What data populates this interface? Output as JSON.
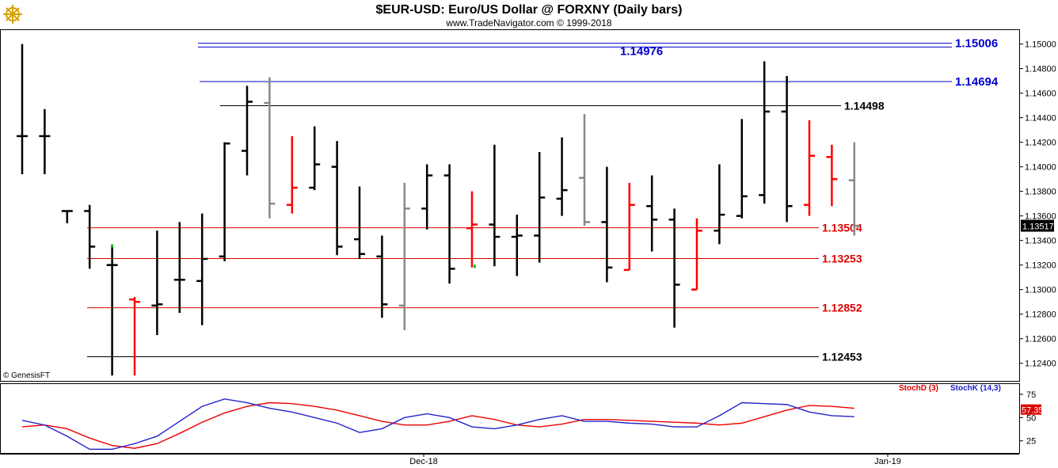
{
  "header": {
    "title": "$EUR-USD:  Euro/US Dollar @ FORXNY  (Daily bars)",
    "subtitle": "www.TradeNavigator.com © 1999-2018"
  },
  "copyright": "© GenesisFT",
  "icons": {
    "logo": "ship-wheel-icon"
  },
  "chart_data": [
    {
      "type": "ohlc",
      "ylim": [
        1.1225,
        1.1512
      ],
      "y_ticks": [
        "1.15000",
        "1.14800",
        "1.14600",
        "1.14400",
        "1.14200",
        "1.14000",
        "1.13800",
        "1.13600",
        "1.13400",
        "1.13200",
        "1.13000",
        "1.12800",
        "1.12600",
        "1.12400"
      ],
      "x_labels": [
        "Dec-18",
        "Jan-19"
      ],
      "last_price": "1.13517",
      "colors": {
        "up": "#000000",
        "down_red": "#ff0000",
        "gray": "#888888",
        "blue_level": "#0000cc",
        "red_level": "#cc0000",
        "black_level": "#000000"
      },
      "bars": [
        {
          "o": 1.1425,
          "h": 1.15,
          "l": 1.1394,
          "c": 1.1425,
          "color": "black"
        },
        {
          "o": 1.1425,
          "h": 1.1447,
          "l": 1.1394,
          "c": 1.1425,
          "color": "black"
        },
        {
          "o": 1.1364,
          "h": 1.1364,
          "l": 1.1354,
          "c": 1.1364,
          "color": "black"
        },
        {
          "o": 1.1364,
          "h": 1.1369,
          "l": 1.1317,
          "c": 1.1335,
          "color": "black"
        },
        {
          "o": 1.132,
          "h": 1.1335,
          "l": 1.123,
          "c": 1.132,
          "color": "black"
        },
        {
          "o": 1.1292,
          "h": 1.1294,
          "l": 1.123,
          "c": 1.129,
          "color": "red"
        },
        {
          "o": 1.1287,
          "h": 1.1348,
          "l": 1.1263,
          "c": 1.1288,
          "color": "black"
        },
        {
          "o": 1.1308,
          "h": 1.1355,
          "l": 1.1281,
          "c": 1.1308,
          "color": "black"
        },
        {
          "o": 1.1307,
          "h": 1.1362,
          "l": 1.1271,
          "c": 1.1325,
          "color": "black"
        },
        {
          "o": 1.1327,
          "h": 1.142,
          "l": 1.1323,
          "c": 1.1419,
          "color": "black"
        },
        {
          "o": 1.1413,
          "h": 1.1466,
          "l": 1.1393,
          "c": 1.1453,
          "color": "black"
        },
        {
          "o": 1.1452,
          "h": 1.1473,
          "l": 1.1358,
          "c": 1.137,
          "color": "gray"
        },
        {
          "o": 1.1369,
          "h": 1.1425,
          "l": 1.1362,
          "c": 1.1383,
          "color": "red"
        },
        {
          "o": 1.1383,
          "h": 1.1433,
          "l": 1.1381,
          "c": 1.1402,
          "color": "black"
        },
        {
          "o": 1.14,
          "h": 1.1421,
          "l": 1.1328,
          "c": 1.1335,
          "color": "black"
        },
        {
          "o": 1.1341,
          "h": 1.1384,
          "l": 1.1325,
          "c": 1.1329,
          "color": "black"
        },
        {
          "o": 1.1327,
          "h": 1.1344,
          "l": 1.1277,
          "c": 1.1288,
          "color": "black"
        },
        {
          "o": 1.1287,
          "h": 1.1387,
          "l": 1.1267,
          "c": 1.1366,
          "color": "gray"
        },
        {
          "o": 1.1366,
          "h": 1.1402,
          "l": 1.1349,
          "c": 1.1393,
          "color": "black"
        },
        {
          "o": 1.1393,
          "h": 1.1402,
          "l": 1.1305,
          "c": 1.1317,
          "color": "black"
        },
        {
          "o": 1.135,
          "h": 1.138,
          "l": 1.1318,
          "c": 1.1353,
          "color": "red"
        },
        {
          "o": 1.1353,
          "h": 1.1418,
          "l": 1.1319,
          "c": 1.1343,
          "color": "black"
        },
        {
          "o": 1.1343,
          "h": 1.1361,
          "l": 1.1311,
          "c": 1.1344,
          "color": "black"
        },
        {
          "o": 1.1344,
          "h": 1.1412,
          "l": 1.1322,
          "c": 1.1375,
          "color": "black"
        },
        {
          "o": 1.1374,
          "h": 1.1424,
          "l": 1.136,
          "c": 1.1381,
          "color": "black"
        },
        {
          "o": 1.1391,
          "h": 1.1443,
          "l": 1.1352,
          "c": 1.1355,
          "color": "gray"
        },
        {
          "o": 1.1355,
          "h": 1.14,
          "l": 1.1306,
          "c": 1.1318,
          "color": "black"
        },
        {
          "o": 1.1316,
          "h": 1.1387,
          "l": 1.1316,
          "c": 1.1369,
          "color": "red"
        },
        {
          "o": 1.1368,
          "h": 1.1393,
          "l": 1.1331,
          "c": 1.1357,
          "color": "black"
        },
        {
          "o": 1.1357,
          "h": 1.1366,
          "l": 1.1269,
          "c": 1.1304,
          "color": "black"
        },
        {
          "o": 1.13,
          "h": 1.1358,
          "l": 1.13,
          "c": 1.1348,
          "color": "red"
        },
        {
          "o": 1.1348,
          "h": 1.1402,
          "l": 1.1337,
          "c": 1.1361,
          "color": "black"
        },
        {
          "o": 1.136,
          "h": 1.1439,
          "l": 1.1358,
          "c": 1.1376,
          "color": "black"
        },
        {
          "o": 1.1377,
          "h": 1.1486,
          "l": 1.137,
          "c": 1.1445,
          "color": "black"
        },
        {
          "o": 1.1445,
          "h": 1.1474,
          "l": 1.1355,
          "c": 1.1368,
          "color": "black"
        },
        {
          "o": 1.1369,
          "h": 1.1438,
          "l": 1.136,
          "c": 1.1409,
          "color": "red"
        },
        {
          "o": 1.1408,
          "h": 1.1418,
          "l": 1.1368,
          "c": 1.139,
          "color": "red"
        },
        {
          "o": 1.1389,
          "h": 1.142,
          "l": 1.1344,
          "c": 1.1352,
          "color": "gray"
        }
      ],
      "levels": [
        {
          "value": 1.15006,
          "label": "1.15006",
          "color": "blue"
        },
        {
          "value": 1.14976,
          "label": "1.14976",
          "color": "blue"
        },
        {
          "value": 1.14694,
          "label": "1.14694",
          "color": "blue"
        },
        {
          "value": 1.14498,
          "label": "1.14498",
          "color": "black"
        },
        {
          "value": 1.13504,
          "label": "1.13504",
          "color": "red"
        },
        {
          "value": 1.13253,
          "label": "1.13253",
          "color": "red"
        },
        {
          "value": 1.12852,
          "label": "1.12852",
          "color": "red"
        },
        {
          "value": 1.12453,
          "label": "1.12453",
          "color": "black"
        }
      ]
    },
    {
      "type": "line",
      "ylim": [
        12,
        86
      ],
      "y_ticks": [
        "75",
        "50",
        "25"
      ],
      "last_value": "57.35",
      "series": [
        {
          "name": "StochD (3)",
          "color": "#ee0000",
          "values": [
            40,
            42,
            38,
            28,
            20,
            17,
            22,
            33,
            45,
            55,
            62,
            66,
            65,
            62,
            58,
            52,
            46,
            42,
            42,
            46,
            52,
            48,
            42,
            40,
            43,
            48,
            48,
            47,
            46,
            45,
            44,
            42,
            44,
            51,
            58,
            63,
            62,
            60
          ]
        },
        {
          "name": "StochK (14,3)",
          "color": "#2222cc",
          "values": [
            47,
            42,
            30,
            16,
            16,
            22,
            30,
            46,
            62,
            70,
            66,
            60,
            56,
            50,
            44,
            34,
            38,
            50,
            54,
            50,
            40,
            38,
            42,
            48,
            52,
            46,
            46,
            44,
            43,
            40,
            40,
            52,
            66,
            65,
            64,
            56,
            52,
            51
          ]
        }
      ]
    }
  ]
}
